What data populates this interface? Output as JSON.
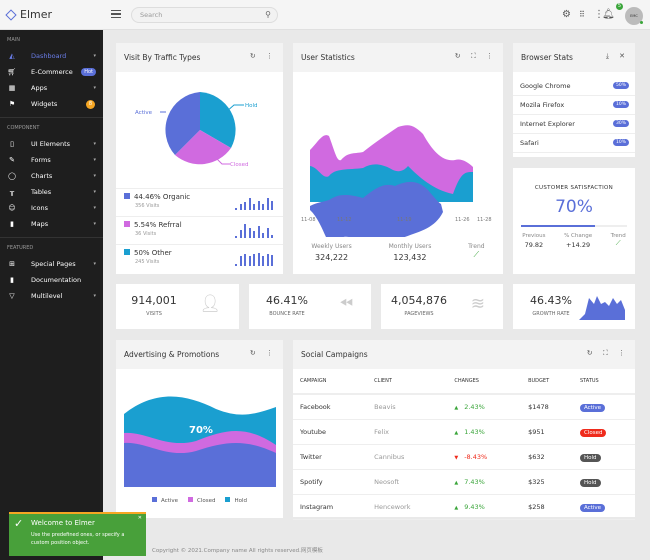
{
  "app": {
    "title": "Elmer"
  },
  "header": {
    "search_placeholder": "Search",
    "notification_count": "5",
    "avatar_text": "EMC"
  },
  "sidebar": {
    "sections": [
      {
        "title": "MAIN",
        "items": [
          {
            "label": "Dashboard",
            "icon": "chart-area-icon",
            "active": true
          },
          {
            "label": "E-Commerce",
            "icon": "basket-icon",
            "badge": "Hot"
          },
          {
            "label": "Apps",
            "icon": "grid-icon"
          },
          {
            "label": "Widgets",
            "icon": "flag-icon",
            "badge": "8"
          }
        ]
      },
      {
        "title": "COMPONENT",
        "items": [
          {
            "label": "UI Elements",
            "icon": "device-icon"
          },
          {
            "label": "Forms",
            "icon": "pencil-icon"
          },
          {
            "label": "Charts",
            "icon": "circle-icon"
          },
          {
            "label": "Tables",
            "icon": "table-icon"
          },
          {
            "label": "Icons",
            "icon": "smiley-icon"
          },
          {
            "label": "Maps",
            "icon": "map-icon"
          }
        ]
      },
      {
        "title": "FEATURED",
        "items": [
          {
            "label": "Special Pages",
            "icon": "plus-square-icon"
          },
          {
            "label": "Documentation",
            "icon": "book-icon"
          },
          {
            "label": "Multilevel",
            "icon": "filter-icon"
          }
        ]
      }
    ]
  },
  "traffic": {
    "title": "Visit By Traffic Types",
    "pie_labels": [
      "Active",
      "Hold",
      "Closed"
    ],
    "rows": [
      {
        "label": "44.46% Organic",
        "sub": "356 Visits",
        "color": "#5a6fd8"
      },
      {
        "label": "5.54% Refrral",
        "sub": "36 Visits",
        "color": "#d06ae0"
      },
      {
        "label": "50% Other",
        "sub": "245 Visits",
        "color": "#1a9fd0"
      }
    ]
  },
  "user_stats": {
    "title": "User Statistics",
    "x_labels": [
      "11-08",
      "11-12",
      "11-19",
      "11-26",
      "11-28"
    ],
    "metrics": [
      {
        "label": "Weekly Users",
        "value": "324,222"
      },
      {
        "label": "Monthly Users",
        "value": "123,432"
      },
      {
        "label": "Trend",
        "value": ""
      }
    ]
  },
  "browser": {
    "title": "Browser Stats",
    "items": [
      {
        "name": "Google Chrome",
        "pct": "50%"
      },
      {
        "name": "Mozila Firefox",
        "pct": "10%"
      },
      {
        "name": "Internet Explorer",
        "pct": "30%"
      },
      {
        "name": "Safari",
        "pct": "10%"
      }
    ]
  },
  "satisfaction": {
    "title": "CUSTOMER SATISFACTION",
    "value": "70%",
    "progress": 70,
    "previous_label": "Previous",
    "previous": "79.82",
    "change_label": "% Change",
    "change": "+14.29",
    "trend_label": "Trend"
  },
  "stats": [
    {
      "value": "914,001",
      "label": "VISITS",
      "icon": "user-icon"
    },
    {
      "value": "46.41%",
      "label": "BOUNCE RATE",
      "icon": "rewind-icon"
    },
    {
      "value": "4,054,876",
      "label": "PAGEVIEWS",
      "icon": "layers-icon"
    },
    {
      "value": "46.43%",
      "label": "GROWTH RATE",
      "icon": "area-chart-icon"
    }
  ],
  "advertising": {
    "title": "Advertising & Promotions",
    "center_label": "70%",
    "legend": [
      "Active",
      "Closed",
      "Hold"
    ]
  },
  "social": {
    "title": "Social Campaigns",
    "columns": [
      "CAMPAIGN",
      "CLIENT",
      "CHANGES",
      "BUDGET",
      "STATUS"
    ],
    "rows": [
      {
        "campaign": "Facebook",
        "client": "Beavis",
        "change": "2.43%",
        "dir": "up",
        "budget": "$1478",
        "status": "Active"
      },
      {
        "campaign": "Youtube",
        "client": "Felix",
        "change": "1.43%",
        "dir": "up",
        "budget": "$951",
        "status": "Closed"
      },
      {
        "campaign": "Twitter",
        "client": "Cannibus",
        "change": "-8.43%",
        "dir": "down",
        "budget": "$632",
        "status": "Hold"
      },
      {
        "campaign": "Spotify",
        "client": "Neosoft",
        "change": "7.43%",
        "dir": "up",
        "budget": "$325",
        "status": "Hold"
      },
      {
        "campaign": "Instagram",
        "client": "Hencework",
        "change": "9.43%",
        "dir": "up",
        "budget": "$258",
        "status": "Active"
      }
    ]
  },
  "colors": {
    "active": "#5a6fd8",
    "closed": "#ef2b1c",
    "hold": "#555555",
    "up": "#3aa53a",
    "down": "#ef2b1c",
    "pink": "#d06ae0",
    "cyan": "#1a9fd0"
  },
  "toast": {
    "title": "Welcome to Elmer",
    "message": "Use the predefined ones, or specify a custom position object."
  },
  "footer": {
    "text": "Copyright © 2021.Company name All rights reserved.网页模板"
  }
}
